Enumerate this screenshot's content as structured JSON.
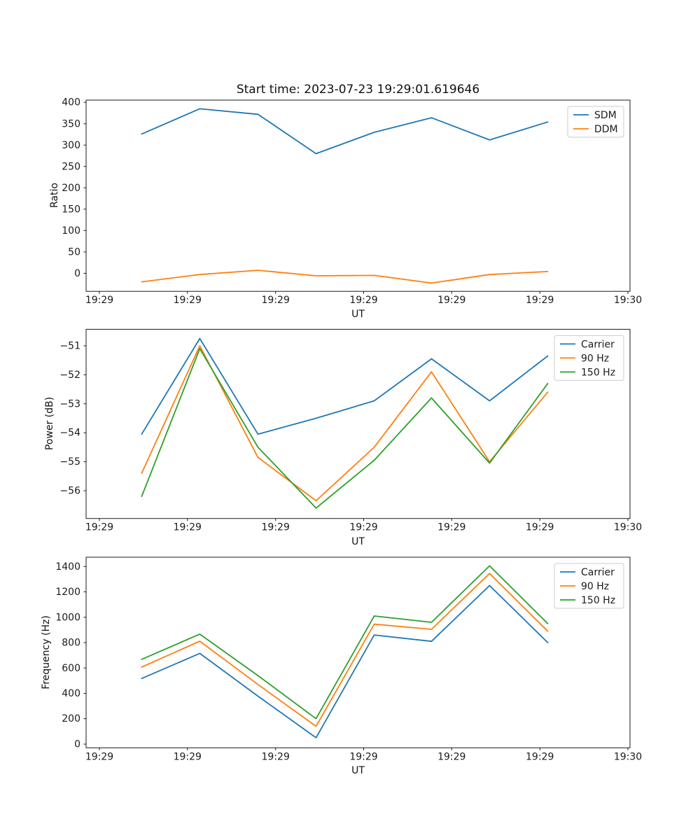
{
  "figure": {
    "title": "Start time: 2023-07-23 19:29:01.619646",
    "background": "#ffffff"
  },
  "colors": {
    "blue": "#1f77b4",
    "orange": "#ff7f0e",
    "green": "#2ca02c",
    "axis": "#1a1a1a"
  },
  "chart_data": [
    {
      "type": "line",
      "title": "Start time: 2023-07-23 19:29:01.619646",
      "xlabel": "UT",
      "ylabel": "Ratio",
      "grid": false,
      "legend_position": "upper right",
      "x_seconds": [
        4.8,
        11.4,
        18.0,
        24.6,
        31.2,
        37.7,
        44.3,
        50.9
      ],
      "xlim_seconds": [
        -1.51,
        60.24
      ],
      "ylim": [
        -42.3,
        405.3
      ],
      "xticks_seconds": [
        0,
        10,
        20,
        30,
        40,
        50,
        60
      ],
      "xticklabels": [
        "19:29",
        "19:29",
        "19:29",
        "19:29",
        "19:29",
        "19:29",
        "19:30"
      ],
      "yticks": [
        0,
        50,
        100,
        150,
        200,
        250,
        300,
        350,
        400
      ],
      "yticklabels": [
        "0",
        "50",
        "100",
        "150",
        "200",
        "250",
        "300",
        "350",
        "400"
      ],
      "series": [
        {
          "name": "SDM",
          "color": "#1f77b4",
          "values": [
            326,
            385,
            372,
            280,
            330,
            364,
            312,
            354
          ]
        },
        {
          "name": "DDM",
          "color": "#ff7f0e",
          "values": [
            -20,
            -3,
            7,
            -6,
            -5,
            -23,
            -3,
            4
          ]
        }
      ]
    },
    {
      "type": "line",
      "title": "",
      "xlabel": "UT",
      "ylabel": "Power (dB)",
      "grid": false,
      "legend_position": "upper right",
      "x_seconds": [
        4.8,
        11.4,
        18.0,
        24.6,
        31.2,
        37.7,
        44.3,
        50.9
      ],
      "xlim_seconds": [
        -1.51,
        60.24
      ],
      "ylim": [
        -56.96,
        -50.43
      ],
      "xticks_seconds": [
        0,
        10,
        20,
        30,
        40,
        50,
        60
      ],
      "xticklabels": [
        "19:29",
        "19:29",
        "19:29",
        "19:29",
        "19:29",
        "19:29",
        "19:30"
      ],
      "yticks": [
        -56,
        -55,
        -54,
        -53,
        -52,
        -51
      ],
      "yticklabels": [
        "−56",
        "−55",
        "−54",
        "−53",
        "−52",
        "−51"
      ],
      "series": [
        {
          "name": "Carrier",
          "color": "#1f77b4",
          "values": [
            -54.05,
            -50.75,
            -54.05,
            -53.5,
            -52.9,
            -51.45,
            -52.9,
            -51.35
          ]
        },
        {
          "name": "90 Hz",
          "color": "#ff7f0e",
          "values": [
            -55.4,
            -51.0,
            -54.85,
            -56.35,
            -54.5,
            -51.9,
            -55.0,
            -52.6
          ]
        },
        {
          "name": "150 Hz",
          "color": "#2ca02c",
          "values": [
            -56.2,
            -51.1,
            -54.5,
            -56.6,
            -54.95,
            -52.8,
            -55.05,
            -52.3
          ]
        }
      ]
    },
    {
      "type": "line",
      "title": "",
      "xlabel": "UT",
      "ylabel": "Frequency (Hz)",
      "grid": false,
      "legend_position": "upper right",
      "x_seconds": [
        4.8,
        11.4,
        18.0,
        24.6,
        31.2,
        37.7,
        44.3,
        50.9
      ],
      "xlim_seconds": [
        -1.51,
        60.24
      ],
      "ylim": [
        -29.3,
        1473.3
      ],
      "xticks_seconds": [
        0,
        10,
        20,
        30,
        40,
        50,
        60
      ],
      "xticklabels": [
        "19:29",
        "19:29",
        "19:29",
        "19:29",
        "19:29",
        "19:29",
        "19:30"
      ],
      "yticks": [
        0,
        200,
        400,
        600,
        800,
        1000,
        1200,
        1400
      ],
      "yticklabels": [
        "0",
        "200",
        "400",
        "600",
        "800",
        "1000",
        "1200",
        "1400"
      ],
      "series": [
        {
          "name": "Carrier",
          "color": "#1f77b4",
          "values": [
            517,
            715,
            378,
            50,
            860,
            810,
            1250,
            800
          ]
        },
        {
          "name": "90 Hz",
          "color": "#ff7f0e",
          "values": [
            607,
            811,
            470,
            140,
            945,
            905,
            1345,
            890
          ]
        },
        {
          "name": "150 Hz",
          "color": "#2ca02c",
          "values": [
            668,
            867,
            540,
            200,
            1010,
            960,
            1405,
            950
          ]
        }
      ]
    }
  ]
}
